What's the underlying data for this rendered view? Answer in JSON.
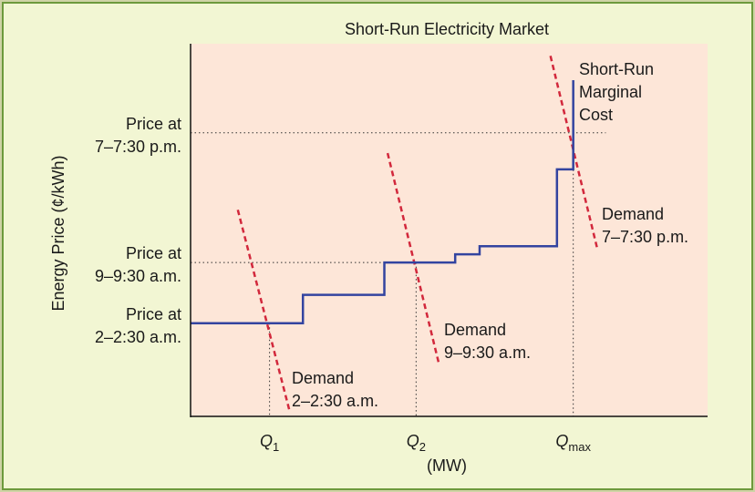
{
  "chart_data": {
    "type": "line",
    "title": "Short-Run Electricity Market",
    "ylabel": "Energy Price (¢/kWh)",
    "xlabel": "(MW)",
    "x_ticks": [
      {
        "id": "q1",
        "main": "Q",
        "sub": "1"
      },
      {
        "id": "q2",
        "main": "Q",
        "sub": "2"
      },
      {
        "id": "qmax",
        "main": "Q",
        "sub": "max"
      }
    ],
    "y_ticks": [
      {
        "id": "evening",
        "lines": [
          "Price at",
          "7–7:30 p.m."
        ]
      },
      {
        "id": "morning",
        "lines": [
          "Price at",
          "9–9:30 a.m."
        ]
      },
      {
        "id": "night",
        "lines": [
          "Price at",
          "2–2:30 a.m."
        ]
      }
    ],
    "series": [
      {
        "name": "Short-Run Marginal Cost",
        "label_lines": [
          "Short-Run",
          "Marginal",
          "Cost"
        ],
        "color": "#3344a0",
        "style": "step",
        "points": [
          [
            0,
            2.3
          ],
          [
            1.38,
            2.3
          ],
          [
            1.38,
            3.0
          ],
          [
            2.38,
            3.0
          ],
          [
            2.38,
            3.8
          ],
          [
            3.25,
            3.8
          ],
          [
            3.25,
            4.0
          ],
          [
            3.55,
            4.0
          ],
          [
            3.55,
            4.2
          ],
          [
            4.5,
            4.2
          ],
          [
            4.5,
            6.1
          ],
          [
            4.7,
            6.1
          ],
          [
            4.7,
            8.3
          ]
        ]
      },
      {
        "name": "Demand 2–2:30 a.m.",
        "label_lines": [
          "Demand",
          "2–2:30 a.m."
        ],
        "color": "#d2283c",
        "style": "dashed",
        "points": [
          [
            0.58,
            5.1
          ],
          [
            1.22,
            0.1
          ]
        ]
      },
      {
        "name": "Demand 9–9:30 a.m.",
        "label_lines": [
          "Demand",
          "9–9:30 a.m."
        ],
        "color": "#d2283c",
        "style": "dashed",
        "points": [
          [
            2.42,
            6.5
          ],
          [
            3.05,
            1.3
          ]
        ]
      },
      {
        "name": "Demand 7–7:30 p.m.",
        "label_lines": [
          "Demand",
          "7–7:30 p.m."
        ],
        "color": "#d2283c",
        "style": "dashed",
        "points": [
          [
            4.42,
            8.9
          ],
          [
            5.0,
            4.1
          ]
        ]
      }
    ],
    "equilibria": [
      {
        "x_tick": "q1",
        "y_tick": "night",
        "x": 0.97,
        "y": 2.3
      },
      {
        "x_tick": "q2",
        "y_tick": "morning",
        "x": 2.77,
        "y": 3.8
      },
      {
        "x_tick": "qmax",
        "y_tick": "evening",
        "x": 4.7,
        "y": 7.0
      }
    ],
    "xlim": [
      0,
      6.35
    ],
    "ylim": [
      0,
      9.2
    ],
    "grid": false,
    "legend": "none"
  },
  "colors": {
    "frame_border": "#6d9a3c",
    "frame_fill": "#f2f6d3",
    "plot_fill": "#fde6d8",
    "supply": "#3344a0",
    "demand": "#d2283c"
  }
}
